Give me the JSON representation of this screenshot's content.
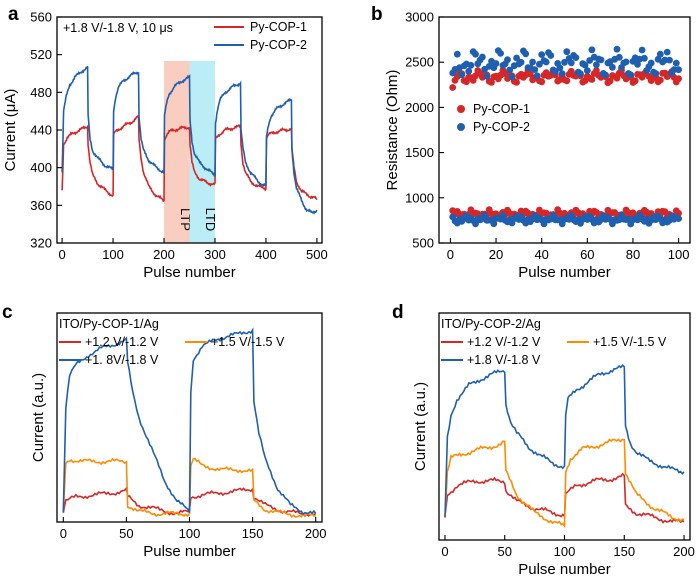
{
  "chart_data": [
    {
      "panel": "a",
      "type": "line",
      "xlabel": "Pulse number",
      "ylabel": "Current (μA)",
      "xlim": [
        -10,
        510
      ],
      "ylim": [
        320,
        560
      ],
      "xticks": [
        0,
        100,
        200,
        300,
        400,
        500
      ],
      "yticks": [
        320,
        360,
        400,
        440,
        480,
        520,
        560
      ],
      "annotation": "+1.8 V/-1.8 V, 10 μs",
      "legend_position": "top-right",
      "regions": [
        {
          "label": "LTP",
          "x": [
            200,
            250
          ],
          "color": "#f8c4b4"
        },
        {
          "label": "LTD",
          "x": [
            250,
            300
          ],
          "color": "#aeeaf4"
        }
      ],
      "series": [
        {
          "name": "Py-COP-1",
          "color": "#d62728",
          "x": [
            0,
            3,
            10,
            20,
            35,
            50,
            51,
            55,
            60,
            70,
            85,
            100,
            101,
            105,
            110,
            120,
            135,
            150,
            151,
            155,
            160,
            170,
            185,
            200,
            201,
            205,
            210,
            220,
            235,
            250,
            251,
            255,
            260,
            270,
            285,
            300,
            301,
            305,
            310,
            320,
            335,
            350,
            351,
            355,
            360,
            370,
            385,
            400,
            401,
            405,
            410,
            420,
            435,
            450,
            451,
            455,
            460,
            470,
            485,
            495,
            500
          ],
          "y": [
            375,
            425,
            432,
            436,
            440,
            444,
            425,
            405,
            392,
            383,
            376,
            370,
            435,
            438,
            440,
            444,
            448,
            454,
            430,
            410,
            395,
            380,
            370,
            365,
            430,
            435,
            438,
            440,
            442,
            443,
            425,
            405,
            395,
            388,
            384,
            382,
            430,
            433,
            436,
            440,
            442,
            444,
            425,
            405,
            395,
            385,
            380,
            378,
            432,
            435,
            436,
            438,
            440,
            441,
            420,
            400,
            385,
            375,
            370,
            368,
            366
          ]
        },
        {
          "name": "Py-COP-2",
          "color": "#1f5fb0",
          "x": [
            0,
            3,
            8,
            15,
            25,
            40,
            50,
            51,
            55,
            60,
            70,
            85,
            100,
            101,
            105,
            110,
            120,
            135,
            150,
            151,
            155,
            160,
            170,
            185,
            200,
            201,
            205,
            210,
            220,
            235,
            250,
            251,
            255,
            260,
            270,
            285,
            300,
            301,
            305,
            310,
            320,
            335,
            350,
            351,
            355,
            360,
            370,
            385,
            400,
            401,
            405,
            410,
            420,
            435,
            450,
            451,
            455,
            460,
            470,
            480,
            490,
            500
          ],
          "y": [
            395,
            460,
            475,
            488,
            496,
            503,
            506,
            455,
            430,
            418,
            410,
            402,
            398,
            460,
            475,
            485,
            492,
            498,
            502,
            455,
            430,
            418,
            408,
            400,
            395,
            455,
            468,
            478,
            486,
            492,
            496,
            450,
            428,
            415,
            405,
            398,
            392,
            448,
            462,
            472,
            480,
            486,
            490,
            440,
            420,
            405,
            395,
            385,
            380,
            432,
            445,
            455,
            462,
            468,
            472,
            420,
            395,
            378,
            365,
            355,
            352,
            355
          ]
        }
      ]
    },
    {
      "panel": "b",
      "type": "scatter",
      "xlabel": "Pulse number",
      "ylabel": "Resistance (Ohm)",
      "xlim": [
        -5,
        105
      ],
      "ylim": [
        500,
        3000
      ],
      "xticks": [
        0,
        20,
        40,
        60,
        80,
        100
      ],
      "yticks": [
        500,
        1000,
        1500,
        2000,
        2500,
        3000
      ],
      "legend_position": "center-left",
      "series": [
        {
          "name": "Py-COP-1",
          "color": "#d62728",
          "high_band": [
            2340,
            2260,
            2420
          ],
          "low_band": [
            820,
            760,
            880
          ],
          "high_first_points": [
            [
              1,
              2220
            ],
            [
              2,
              2300
            ]
          ]
        },
        {
          "name": "Py-COP-2",
          "color": "#1f5fb0",
          "high_band": [
            2490,
            2380,
            2720
          ],
          "low_band": [
            760,
            700,
            820
          ],
          "high_first_points": [
            [
              1,
              2380
            ],
            [
              2,
              2420
            ]
          ]
        }
      ]
    },
    {
      "panel": "c",
      "type": "line",
      "title": "ITO/Py-COP-1/Ag",
      "xlabel": "Pulse number",
      "ylabel": "Current (a.u.)",
      "xlim": [
        -5,
        205
      ],
      "ylim": [
        0,
        1
      ],
      "xticks": [
        0,
        50,
        100,
        150,
        200
      ],
      "legend_position": "top-left",
      "series": [
        {
          "name": "+1.2 V/-1.2 V",
          "color": "#d62728",
          "x": [
            0,
            2,
            10,
            25,
            40,
            50,
            51,
            60,
            75,
            90,
            100,
            101,
            110,
            125,
            140,
            150,
            151,
            160,
            175,
            190,
            200
          ],
          "y": [
            0.05,
            0.1,
            0.12,
            0.13,
            0.14,
            0.15,
            0.12,
            0.08,
            0.06,
            0.04,
            0.05,
            0.12,
            0.13,
            0.14,
            0.15,
            0.16,
            0.12,
            0.08,
            0.05,
            0.04,
            0.04
          ]
        },
        {
          "name": "+1.5 V/-1.5 V",
          "color": "#ff8c00",
          "x": [
            0,
            2,
            5,
            15,
            30,
            45,
            50,
            51,
            60,
            75,
            90,
            100,
            101,
            103,
            110,
            125,
            140,
            150,
            151,
            160,
            175,
            190,
            200
          ],
          "y": [
            0.05,
            0.28,
            0.3,
            0.29,
            0.29,
            0.29,
            0.29,
            0.08,
            0.05,
            0.04,
            0.04,
            0.04,
            0.27,
            0.3,
            0.27,
            0.25,
            0.25,
            0.24,
            0.1,
            0.06,
            0.04,
            0.03,
            0.03
          ]
        },
        {
          "name": "+1. 8V/-1.8 V",
          "color": "#1f5fb0",
          "x": [
            0,
            2,
            5,
            10,
            20,
            30,
            40,
            50,
            51,
            55,
            60,
            70,
            80,
            90,
            100,
            101,
            103,
            110,
            120,
            130,
            140,
            150,
            151,
            155,
            160,
            170,
            180,
            190,
            200
          ],
          "y": [
            0.05,
            0.55,
            0.7,
            0.75,
            0.8,
            0.83,
            0.85,
            0.87,
            0.76,
            0.62,
            0.5,
            0.35,
            0.2,
            0.1,
            0.05,
            0.62,
            0.78,
            0.84,
            0.87,
            0.89,
            0.9,
            0.92,
            0.58,
            0.42,
            0.3,
            0.16,
            0.08,
            0.05,
            0.04
          ]
        }
      ]
    },
    {
      "panel": "d",
      "type": "line",
      "title": "ITO/Py-COP-2/Ag",
      "xlabel": "Pulse number",
      "ylabel": "Current (a.u.)",
      "xlim": [
        -5,
        205
      ],
      "ylim": [
        0,
        1
      ],
      "xticks": [
        0,
        50,
        100,
        150,
        200
      ],
      "legend_position": "top-left",
      "series": [
        {
          "name": "+1.2 V/-1.2 V",
          "color": "#d62728",
          "x": [
            0,
            2,
            10,
            25,
            40,
            50,
            51,
            60,
            75,
            90,
            100,
            101,
            110,
            125,
            140,
            150,
            151,
            160,
            175,
            190,
            200
          ],
          "y": [
            0.1,
            0.2,
            0.24,
            0.26,
            0.26,
            0.26,
            0.22,
            0.17,
            0.14,
            0.12,
            0.11,
            0.2,
            0.24,
            0.26,
            0.27,
            0.28,
            0.15,
            0.12,
            0.1,
            0.08,
            0.08
          ]
        },
        {
          "name": "+1.5 V/-1.5 V",
          "color": "#ff8c00",
          "x": [
            0,
            2,
            5,
            15,
            30,
            45,
            50,
            51,
            60,
            75,
            90,
            100,
            101,
            105,
            115,
            130,
            145,
            150,
            151,
            160,
            175,
            190,
            200
          ],
          "y": [
            0.1,
            0.3,
            0.36,
            0.38,
            0.4,
            0.42,
            0.43,
            0.3,
            0.2,
            0.12,
            0.08,
            0.06,
            0.3,
            0.36,
            0.4,
            0.42,
            0.44,
            0.45,
            0.3,
            0.2,
            0.14,
            0.1,
            0.09
          ]
        },
        {
          "name": "+1.8 V/-1.8 V",
          "color": "#1f5fb0",
          "x": [
            0,
            2,
            5,
            10,
            20,
            30,
            40,
            50,
            51,
            55,
            60,
            70,
            80,
            90,
            100,
            101,
            103,
            110,
            120,
            130,
            140,
            150,
            151,
            155,
            160,
            170,
            180,
            190,
            200
          ],
          "y": [
            0.1,
            0.45,
            0.55,
            0.62,
            0.68,
            0.71,
            0.73,
            0.75,
            0.6,
            0.52,
            0.47,
            0.41,
            0.37,
            0.34,
            0.32,
            0.55,
            0.62,
            0.66,
            0.7,
            0.73,
            0.75,
            0.76,
            0.5,
            0.43,
            0.39,
            0.35,
            0.33,
            0.31,
            0.3
          ]
        }
      ]
    }
  ]
}
